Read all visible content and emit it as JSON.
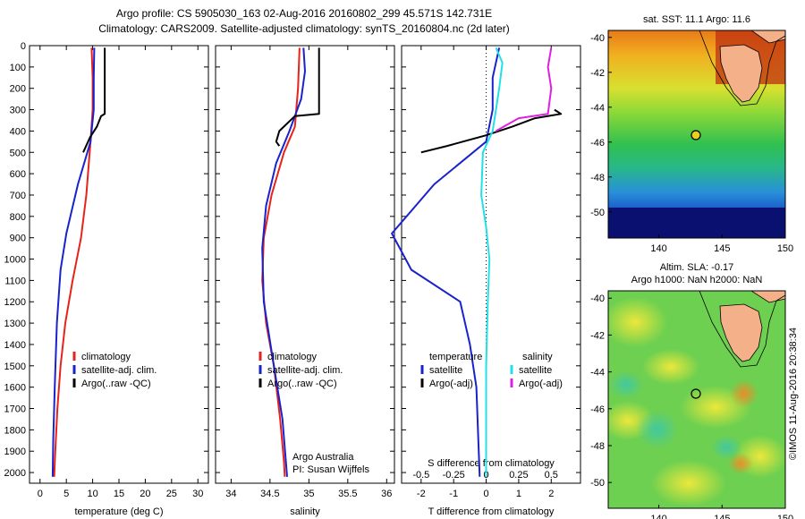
{
  "header": {
    "line1": "Argo profile: CS 5905030_163 02-Aug-2016 20160802_299 45.571S 142.731E",
    "line2": "Climatology: CARS2009. Satellite-adjusted climatology: synTS_20160804.nc (2d later)"
  },
  "colors": {
    "climatology": "#e8221a",
    "satellite": "#1a22cc",
    "argo": "#000000",
    "cyan": "#22e0e8",
    "magenta": "#e020e0",
    "land": "#f4b088"
  },
  "chart_data": [
    {
      "type": "line",
      "id": "temperature",
      "xlabel": "temperature (deg C)",
      "ylabel": "",
      "xlim": [
        -2,
        32
      ],
      "ylim": [
        2050,
        0
      ],
      "xticks": [
        "0",
        "5",
        "10",
        "15",
        "20",
        "25",
        "30"
      ],
      "yticks": [
        "0",
        "100",
        "200",
        "300",
        "400",
        "500",
        "600",
        "700",
        "800",
        "900",
        "1000",
        "1100",
        "1200",
        "1300",
        "1400",
        "1500",
        "1600",
        "1700",
        "1800",
        "1900",
        "2000"
      ],
      "legend": {
        "position": "lower-center",
        "entries": [
          "climatology",
          "satellite-adj. clim.",
          "Argo(..raw -QC)"
        ]
      },
      "series": [
        {
          "name": "climatology",
          "color": "#e8221a",
          "points": [
            [
              9.8,
              10
            ],
            [
              10.0,
              150
            ],
            [
              10.0,
              300
            ],
            [
              9.6,
              450
            ],
            [
              8.8,
              700
            ],
            [
              7.8,
              900
            ],
            [
              6.2,
              1100
            ],
            [
              4.8,
              1300
            ],
            [
              3.9,
              1500
            ],
            [
              3.3,
              1700
            ],
            [
              2.9,
              1900
            ],
            [
              2.7,
              2020
            ]
          ]
        },
        {
          "name": "satellite-adj. clim.",
          "color": "#1a22cc",
          "points": [
            [
              10.3,
              10
            ],
            [
              10.2,
              150
            ],
            [
              10.2,
              300
            ],
            [
              9.6,
              450
            ],
            [
              7.2,
              650
            ],
            [
              5.0,
              880
            ],
            [
              3.9,
              1050
            ],
            [
              3.2,
              1300
            ],
            [
              2.8,
              1600
            ],
            [
              2.5,
              1850
            ],
            [
              2.4,
              2020
            ]
          ]
        },
        {
          "name": "Argo(..raw -QC)",
          "color": "#000000",
          "points": [
            [
              12.3,
              10
            ],
            [
              12.3,
              320
            ],
            [
              11.6,
              330
            ],
            [
              10.8,
              380
            ],
            [
              9.5,
              430
            ],
            [
              8.2,
              500
            ]
          ]
        }
      ]
    },
    {
      "type": "line",
      "id": "salinity",
      "xlabel": "salinity",
      "ylabel": "",
      "xlim": [
        33.8,
        36.1
      ],
      "ylim": [
        2050,
        0
      ],
      "xticks": [
        "34",
        "34.5",
        "35",
        "35.5",
        "36"
      ],
      "legend": {
        "position": "lower-center",
        "entries": [
          "climatology",
          "satellite-adj. clim.",
          "Argo(..raw -QC)"
        ]
      },
      "annotations": [
        "Argo Australia",
        "PI: Susan Wijffels"
      ],
      "series": [
        {
          "name": "climatology",
          "color": "#e8221a",
          "points": [
            [
              34.88,
              10
            ],
            [
              34.86,
              200
            ],
            [
              34.82,
              380
            ],
            [
              34.68,
              500
            ],
            [
              34.52,
              700
            ],
            [
              34.42,
              900
            ],
            [
              34.4,
              1100
            ],
            [
              34.45,
              1300
            ],
            [
              34.55,
              1500
            ],
            [
              34.63,
              1750
            ],
            [
              34.68,
              1950
            ],
            [
              34.69,
              2020
            ]
          ]
        },
        {
          "name": "satellite-adj. clim.",
          "color": "#1a22cc",
          "points": [
            [
              34.93,
              10
            ],
            [
              34.95,
              120
            ],
            [
              34.9,
              250
            ],
            [
              34.75,
              400
            ],
            [
              34.58,
              550
            ],
            [
              34.45,
              750
            ],
            [
              34.4,
              950
            ],
            [
              34.42,
              1200
            ],
            [
              34.55,
              1500
            ],
            [
              34.66,
              1750
            ],
            [
              34.72,
              2020
            ]
          ]
        },
        {
          "name": "Argo(..raw -QC)",
          "color": "#000000",
          "points": [
            [
              35.13,
              10
            ],
            [
              35.13,
              320
            ],
            [
              34.82,
              330
            ],
            [
              34.62,
              400
            ],
            [
              34.58,
              450
            ],
            [
              34.62,
              470
            ]
          ]
        }
      ]
    },
    {
      "type": "line",
      "id": "differences",
      "xlabel": "T difference from climatology",
      "xlabel_top": "S difference from climatology",
      "ylabel": "",
      "xlim": [
        -2.6,
        2.9
      ],
      "ylim": [
        2050,
        0
      ],
      "xticks": [
        "-2",
        "-1",
        "0",
        "1",
        "2"
      ],
      "xticks_top": [
        "-0.5",
        "-0.25",
        "0",
        "0.25",
        "0.5"
      ],
      "legend": {
        "position": "lower-center",
        "entries": [
          "temperature",
          "satellite",
          "Argo(-adj)",
          "salinity",
          "satellite",
          "Argo(-adj)"
        ]
      },
      "series": [
        {
          "name": "satellite",
          "color": "#1a22cc",
          "points": [
            [
              0.4,
              10
            ],
            [
              0.2,
              150
            ],
            [
              0.2,
              300
            ],
            [
              0.0,
              450
            ],
            [
              -1.6,
              650
            ],
            [
              -2.9,
              880
            ],
            [
              -2.3,
              1050
            ],
            [
              -0.8,
              1200
            ],
            [
              -0.5,
              1400
            ],
            [
              -0.3,
              1600
            ],
            [
              -0.2,
              2020
            ]
          ]
        },
        {
          "name": "Argo(-adj)",
          "color": "#000000",
          "points": [
            [
              2.1,
              300
            ],
            [
              2.3,
              320
            ],
            [
              1.5,
              340
            ],
            [
              0.8,
              380
            ],
            [
              0.0,
              420
            ],
            [
              -1.2,
              470
            ],
            [
              -2.0,
              500
            ]
          ]
        },
        {
          "name": "satellite",
          "color": "#22e0e8",
          "points": [
            [
              0.3,
              10
            ],
            [
              0.5,
              80
            ],
            [
              0.4,
              200
            ],
            [
              0.3,
              300
            ],
            [
              0.2,
              400
            ],
            [
              -0.1,
              500
            ],
            [
              -0.15,
              700
            ],
            [
              0.0,
              850
            ],
            [
              0.1,
              1000
            ],
            [
              0.05,
              1200
            ],
            [
              0.0,
              1500
            ],
            [
              0.0,
              2020
            ]
          ]
        },
        {
          "name": "Argo(-adj)",
          "color": "#e020e0",
          "points": [
            [
              2.0,
              10
            ],
            [
              1.9,
              100
            ],
            [
              2.0,
              200
            ],
            [
              1.9,
              320
            ],
            [
              1.0,
              340
            ],
            [
              0.3,
              400
            ]
          ]
        }
      ]
    }
  ],
  "maps": {
    "sst": {
      "title": "sat. SST: 11.1 Argo: 11.6",
      "xticks": [
        "140",
        "145",
        "150"
      ],
      "yticks": [
        "-40",
        "-42",
        "-44",
        "-46",
        "-48",
        "-50"
      ]
    },
    "sla": {
      "title1": "Altim. SLA: -0.17",
      "title2": "Argo h1000: NaN h2000: NaN",
      "xticks": [
        "140",
        "145",
        "150"
      ],
      "yticks": [
        "-40",
        "-42",
        "-44",
        "-46",
        "-48",
        "-50"
      ]
    }
  },
  "footer": {
    "stamp": "©IMOS 11-Aug-2016 20:38:34"
  }
}
